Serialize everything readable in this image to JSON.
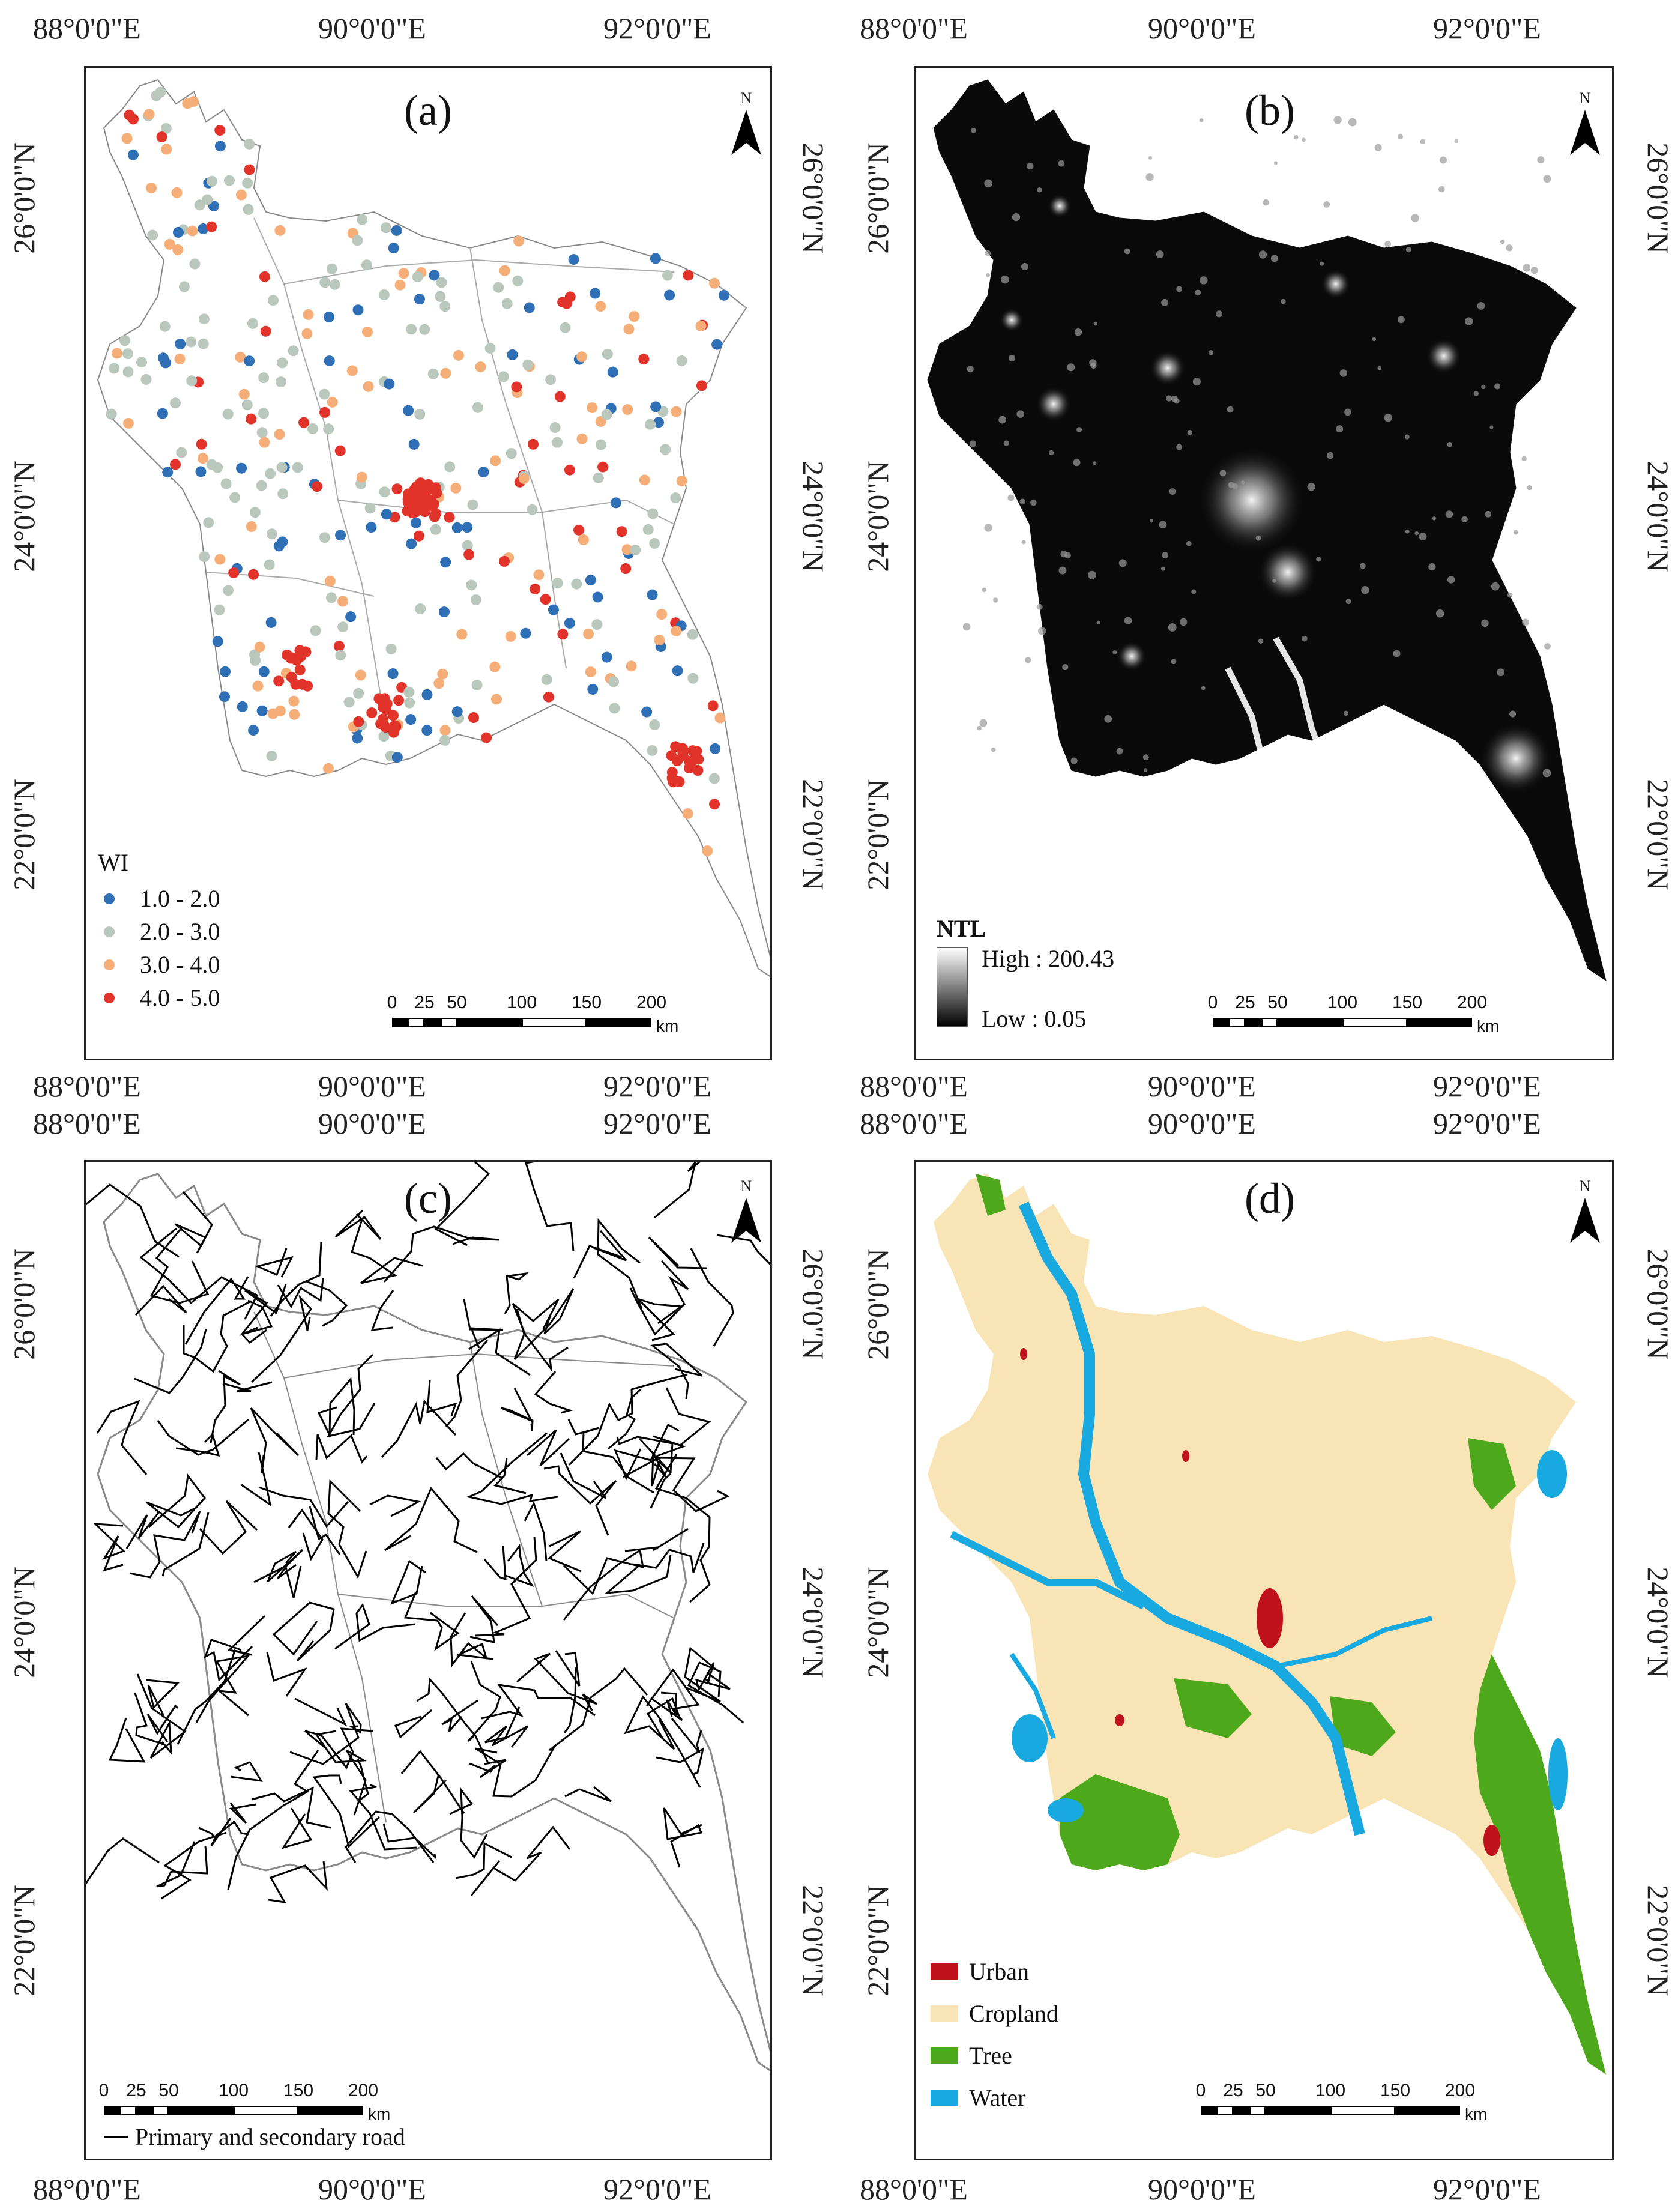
{
  "longitude_labels": [
    "88°0'0\"E",
    "90°0'0\"E",
    "92°0'0\"E"
  ],
  "latitude_labels": [
    "26°0'0\"N",
    "24°0'0\"N",
    "22°0'0\"N"
  ],
  "north_label": "N",
  "scale_bar": {
    "ticks": [
      "0",
      "25",
      "50",
      "100",
      "150",
      "200"
    ],
    "unit": "km"
  },
  "panels": {
    "a": {
      "letter": "(a)",
      "legend": {
        "title": "WI",
        "classes": [
          {
            "label": "1.0 - 2.0",
            "color": "#2f6fb5"
          },
          {
            "label": "2.0 - 3.0",
            "color": "#b9c7bd"
          },
          {
            "label": "3.0 - 4.0",
            "color": "#f6ae78"
          },
          {
            "label": "4.0 - 5.0",
            "color": "#e2332b"
          }
        ]
      }
    },
    "b": {
      "letter": "(b)",
      "legend": {
        "title": "NTL",
        "high": "High : 200.43",
        "low": "Low : 0.05"
      }
    },
    "c": {
      "letter": "(c)",
      "legend": {
        "road": "Primary and secondary road",
        "road_color": "#000000",
        "boundary_color": "#8a8a8a"
      }
    },
    "d": {
      "letter": "(d)",
      "legend": {
        "classes": [
          {
            "label": "Urban",
            "color": "#c0121d"
          },
          {
            "label": "Cropland",
            "color": "#f8e4b5"
          },
          {
            "label": "Tree",
            "color": "#4ea81c"
          },
          {
            "label": "Water",
            "color": "#18a9e0"
          }
        ]
      }
    }
  }
}
